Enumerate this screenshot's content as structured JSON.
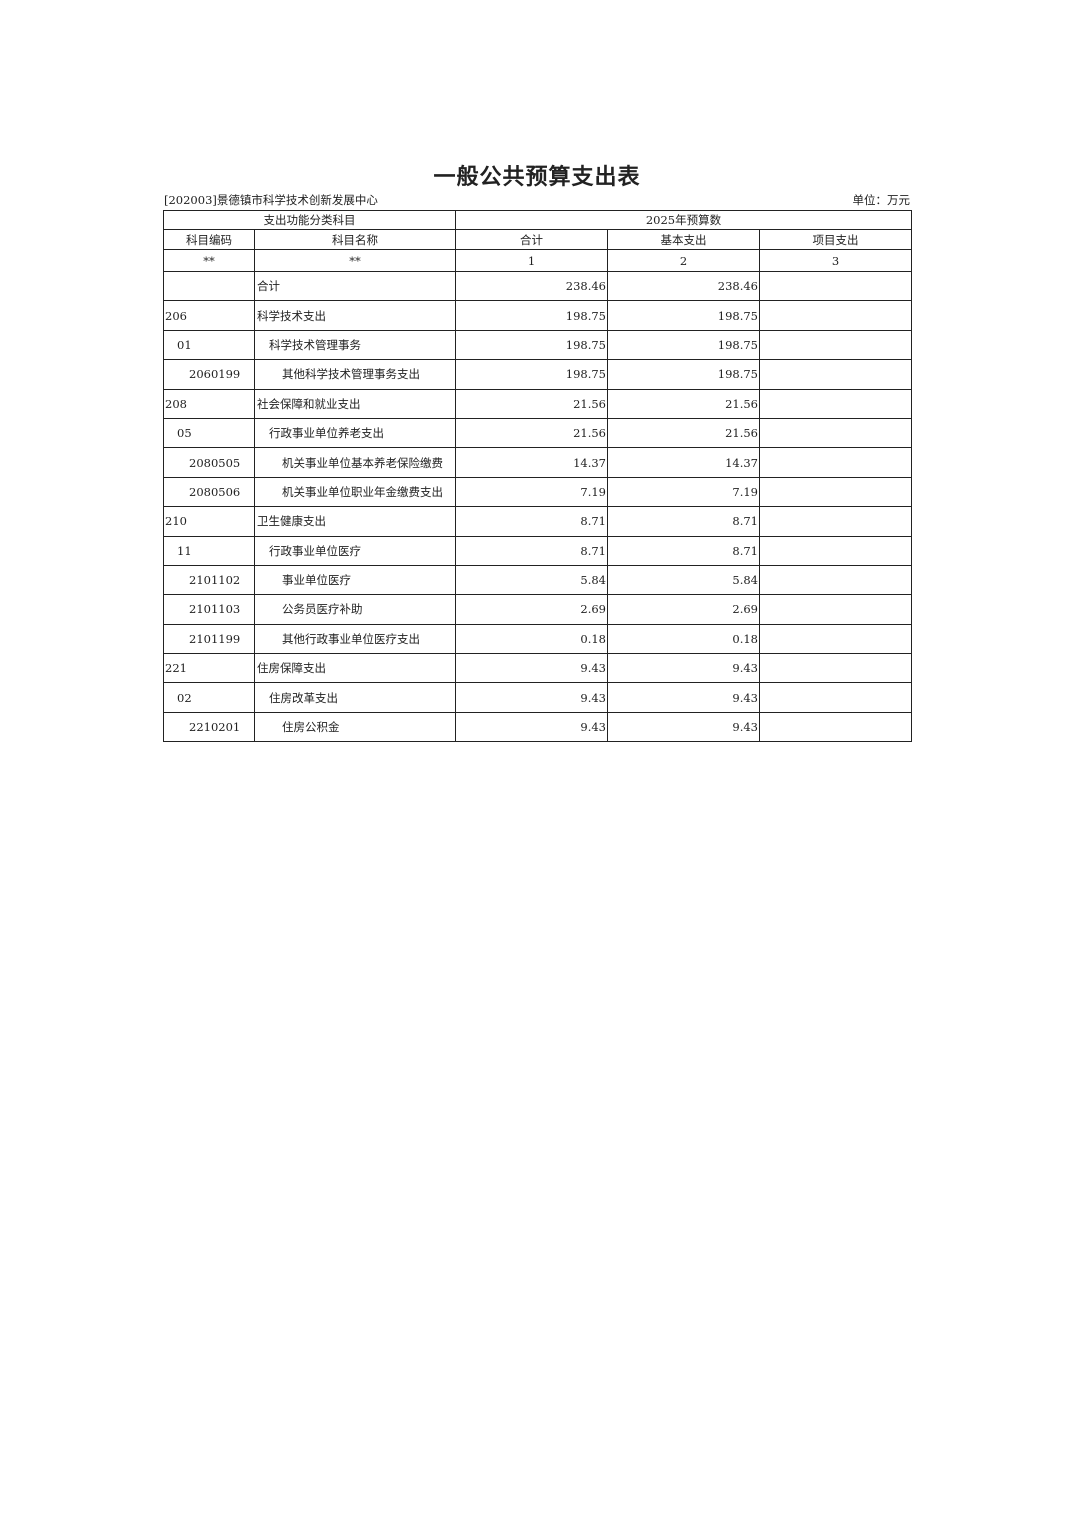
{
  "title": "一般公共预算支出表",
  "organization": "[202003]景德镇市科学技术创新发展中心",
  "unit": "单位：万元",
  "header": {
    "group_left": "支出功能分类科目",
    "group_right": "2025年预算数",
    "columns": [
      "科目编码",
      "科目名称",
      "合计",
      "基本支出",
      "项目支出"
    ],
    "index_row": [
      "**",
      "**",
      "1",
      "2",
      "3"
    ]
  },
  "rows": [
    {
      "code": "",
      "name": "合计",
      "level": 0,
      "total": "238.46",
      "basic": "238.46",
      "project": ""
    },
    {
      "code": "206",
      "name": "科学技术支出",
      "level": 0,
      "total": "198.75",
      "basic": "198.75",
      "project": ""
    },
    {
      "code": "01",
      "name": "科学技术管理事务",
      "level": 1,
      "total": "198.75",
      "basic": "198.75",
      "project": ""
    },
    {
      "code": "2060199",
      "name": "其他科学技术管理事务支出",
      "level": 2,
      "total": "198.75",
      "basic": "198.75",
      "project": ""
    },
    {
      "code": "208",
      "name": "社会保障和就业支出",
      "level": 0,
      "total": "21.56",
      "basic": "21.56",
      "project": ""
    },
    {
      "code": "05",
      "name": "行政事业单位养老支出",
      "level": 1,
      "total": "21.56",
      "basic": "21.56",
      "project": ""
    },
    {
      "code": "2080505",
      "name": "机关事业单位基本养老保险缴费",
      "level": 2,
      "total": "14.37",
      "basic": "14.37",
      "project": ""
    },
    {
      "code": "2080506",
      "name": "机关事业单位职业年金缴费支出",
      "level": 2,
      "total": "7.19",
      "basic": "7.19",
      "project": ""
    },
    {
      "code": "210",
      "name": "卫生健康支出",
      "level": 0,
      "total": "8.71",
      "basic": "8.71",
      "project": ""
    },
    {
      "code": "11",
      "name": "行政事业单位医疗",
      "level": 1,
      "total": "8.71",
      "basic": "8.71",
      "project": ""
    },
    {
      "code": "2101102",
      "name": "事业单位医疗",
      "level": 2,
      "total": "5.84",
      "basic": "5.84",
      "project": ""
    },
    {
      "code": "2101103",
      "name": "公务员医疗补助",
      "level": 2,
      "total": "2.69",
      "basic": "2.69",
      "project": ""
    },
    {
      "code": "2101199",
      "name": "其他行政事业单位医疗支出",
      "level": 2,
      "total": "0.18",
      "basic": "0.18",
      "project": ""
    },
    {
      "code": "221",
      "name": "住房保障支出",
      "level": 0,
      "total": "9.43",
      "basic": "9.43",
      "project": ""
    },
    {
      "code": "02",
      "name": "住房改革支出",
      "level": 1,
      "total": "9.43",
      "basic": "9.43",
      "project": ""
    },
    {
      "code": "2210201",
      "name": "住房公积金",
      "level": 2,
      "total": "9.43",
      "basic": "9.43",
      "project": ""
    }
  ]
}
